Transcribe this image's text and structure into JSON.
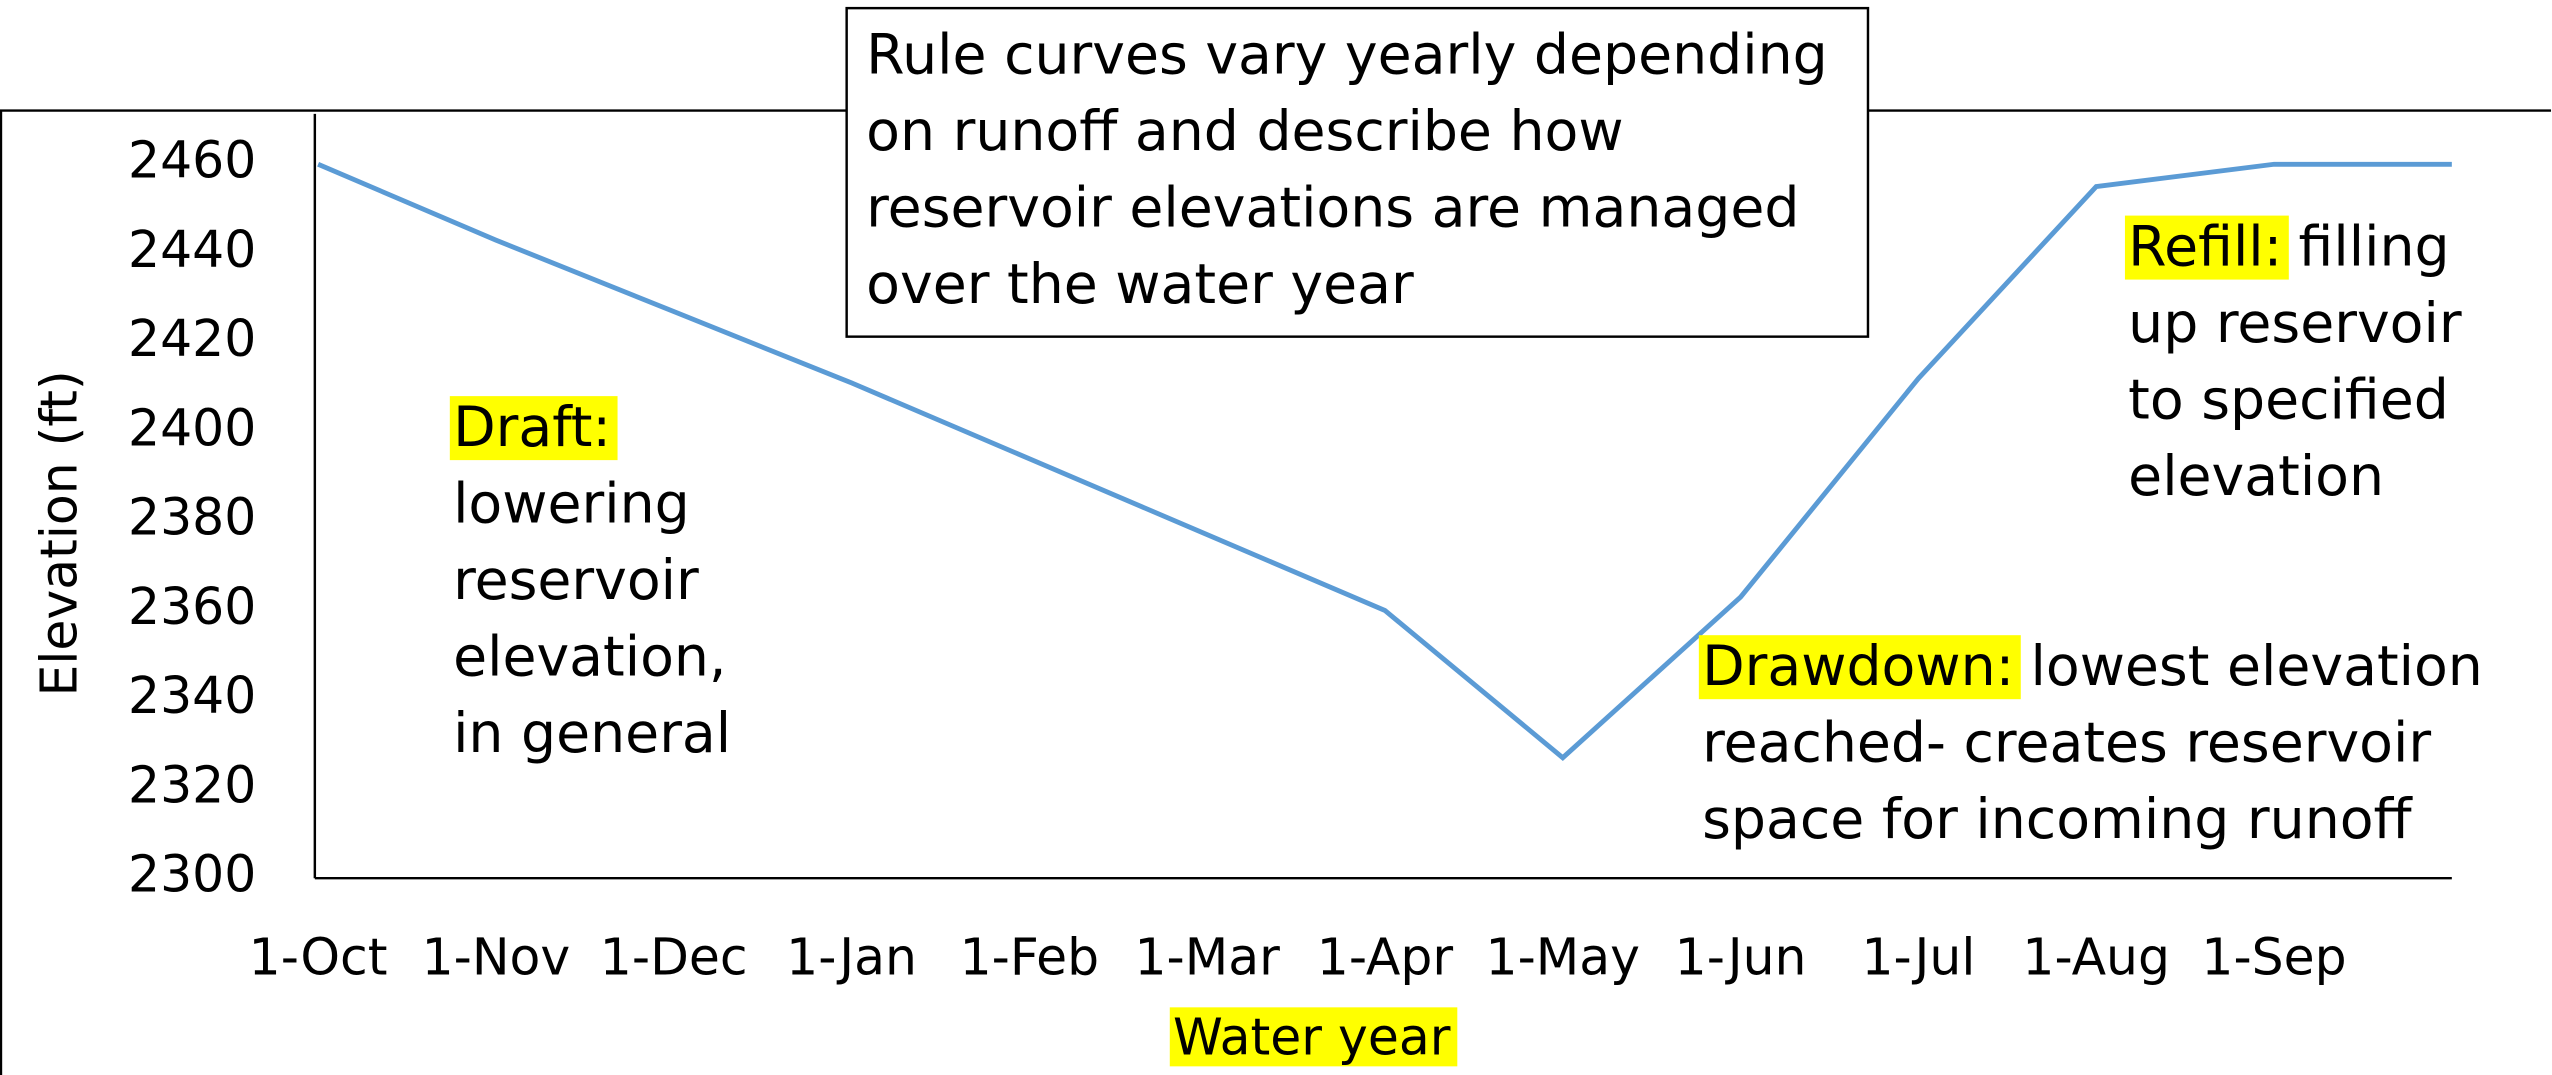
{
  "chart_data": {
    "type": "line",
    "categories": [
      "1-Oct",
      "1-Nov",
      "1-Dec",
      "1-Jan",
      "1-Feb",
      "1-Mar",
      "1-Apr",
      "1-May",
      "1-Jun",
      "1-Jul",
      "1-Aug",
      "1-Sep",
      null
    ],
    "series": [
      {
        "color": "#5b9bd5",
        "values": [
          2460,
          2443,
          2427,
          2411,
          2394,
          2377,
          2360,
          2327,
          2363,
          2412,
          2455,
          2460,
          2460
        ]
      }
    ],
    "ylim": [
      2300,
      2460
    ],
    "yticks": [
      2300,
      2320,
      2340,
      2360,
      2380,
      2400,
      2420,
      2440,
      2460
    ],
    "ylabel": "Elevation (ft)",
    "xlabel": "Water year",
    "callout": [
      "Rule curves vary yearly depending",
      "on runoff and describe how",
      "reservoir elevations are managed",
      "over the water year"
    ],
    "annotations": [
      {
        "label": "Draft:",
        "lines": [
          "lowering",
          "reservoir",
          "elevation,",
          "in general"
        ]
      },
      {
        "label": "Drawdown:",
        "lines": [
          "lowest elevation",
          "reached- creates reservoir",
          "space for incoming runoff"
        ]
      },
      {
        "label": "Refill:",
        "lines": [
          "filling",
          "up reservoir",
          "to specified",
          "elevation"
        ]
      }
    ]
  }
}
